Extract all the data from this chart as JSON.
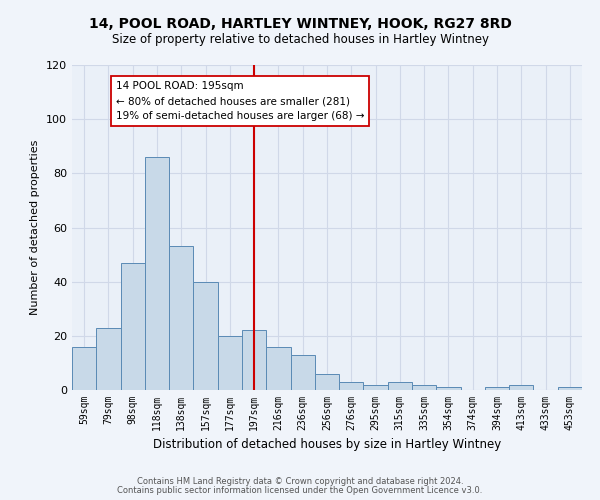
{
  "title": "14, POOL ROAD, HARTLEY WINTNEY, HOOK, RG27 8RD",
  "subtitle": "Size of property relative to detached houses in Hartley Wintney",
  "xlabel": "Distribution of detached houses by size in Hartley Wintney",
  "ylabel": "Number of detached properties",
  "categories": [
    "59sqm",
    "79sqm",
    "98sqm",
    "118sqm",
    "138sqm",
    "157sqm",
    "177sqm",
    "197sqm",
    "216sqm",
    "236sqm",
    "256sqm",
    "276sqm",
    "295sqm",
    "315sqm",
    "335sqm",
    "354sqm",
    "374sqm",
    "394sqm",
    "413sqm",
    "433sqm",
    "453sqm"
  ],
  "values": [
    16,
    23,
    47,
    86,
    53,
    40,
    20,
    22,
    16,
    13,
    6,
    3,
    2,
    3,
    2,
    1,
    0,
    1,
    2,
    0,
    1
  ],
  "bar_color": "#c8d9e8",
  "bar_edge_color": "#5a8ab5",
  "vline_x": 7,
  "vline_color": "#cc0000",
  "annotation_text": "14 POOL ROAD: 195sqm\n← 80% of detached houses are smaller (281)\n19% of semi-detached houses are larger (68) →",
  "annotation_box_color": "#ffffff",
  "annotation_box_edge": "#cc0000",
  "ylim": [
    0,
    120
  ],
  "yticks": [
    0,
    20,
    40,
    60,
    80,
    100,
    120
  ],
  "grid_color": "#d0d8e8",
  "bg_color": "#eaf0f8",
  "fig_bg_color": "#f0f4fa",
  "footer1": "Contains HM Land Registry data © Crown copyright and database right 2024.",
  "footer2": "Contains public sector information licensed under the Open Government Licence v3.0."
}
